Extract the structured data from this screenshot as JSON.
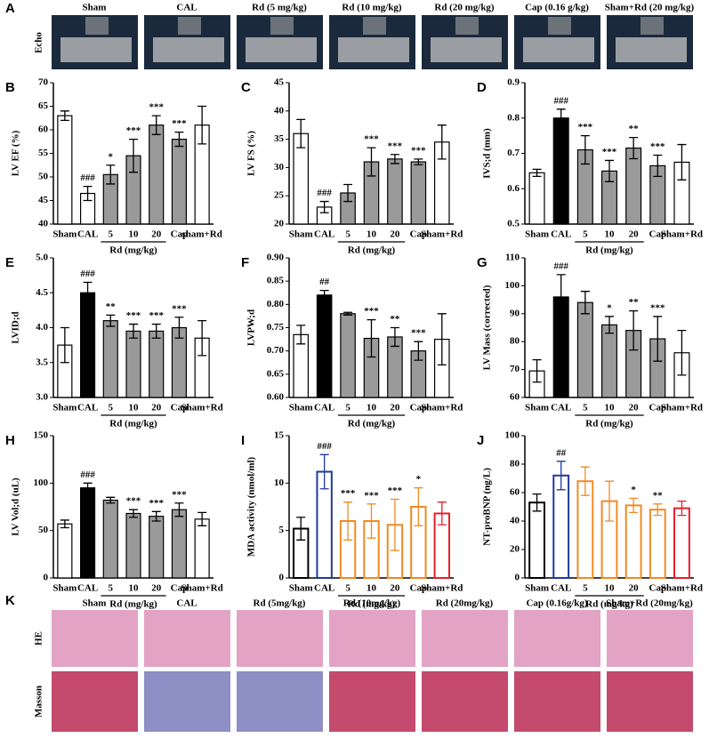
{
  "panel_a": {
    "letter": "A",
    "row_label": "Echo",
    "columns": [
      "Sham",
      "CAL",
      "Rd (5 mg/kg)",
      "Rd (10 mg/kg)",
      "Rd (20 mg/kg)",
      "Cap (0.16 g/kg)",
      "Sham+Rd (20 mg/kg)"
    ]
  },
  "chart_data": [
    {
      "type": "bar",
      "letter": "B",
      "ylabel": "LV EF (%)",
      "categories": [
        "Sham",
        "CAL",
        "5",
        "10",
        "20",
        "Cap",
        "sham+Rd"
      ],
      "group_label": "Rd (mg/kg)",
      "values": [
        63,
        46.5,
        50.5,
        54.5,
        61,
        58,
        61
      ],
      "errors": [
        1,
        1.5,
        2,
        3.5,
        2,
        1.5,
        4
      ],
      "significance": [
        null,
        "###",
        "*",
        "***",
        "***",
        "***",
        null
      ],
      "colors": [
        "#ffffff",
        "#ffffff",
        "#9a9a9a",
        "#9a9a9a",
        "#9a9a9a",
        "#9a9a9a",
        "#ffffff"
      ],
      "ylim": [
        40,
        70
      ],
      "yticks": [
        40,
        45,
        50,
        55,
        60,
        65,
        70
      ]
    },
    {
      "type": "bar",
      "letter": "C",
      "ylabel": "LV FS (%)",
      "categories": [
        "Sham",
        "CAL",
        "5",
        "10",
        "20",
        "Cap",
        "Sham+Rd"
      ],
      "group_label": "Rd (mg/kg)",
      "values": [
        36,
        23,
        25.5,
        31,
        31.5,
        31,
        34.5
      ],
      "errors": [
        2.5,
        1,
        1.5,
        2.5,
        0.8,
        0.5,
        3
      ],
      "significance": [
        null,
        "###",
        null,
        "***",
        "***",
        "***",
        null
      ],
      "colors": [
        "#ffffff",
        "#ffffff",
        "#9a9a9a",
        "#9a9a9a",
        "#9a9a9a",
        "#9a9a9a",
        "#ffffff"
      ],
      "ylim": [
        20,
        45
      ],
      "yticks": [
        20,
        25,
        30,
        35,
        40,
        45
      ]
    },
    {
      "type": "bar",
      "letter": "D",
      "ylabel": "IVS;d (mm)",
      "categories": [
        "Sham",
        "CAL",
        "5",
        "10",
        "20",
        "Cap",
        "Sham+Rd"
      ],
      "group_label": "Rd (mg/kg)",
      "values": [
        0.645,
        0.8,
        0.71,
        0.65,
        0.715,
        0.665,
        0.675
      ],
      "errors": [
        0.01,
        0.025,
        0.04,
        0.03,
        0.03,
        0.03,
        0.05
      ],
      "significance": [
        null,
        "###",
        "***",
        "***",
        "**",
        "***",
        null
      ],
      "colors": [
        "#ffffff",
        "#000000",
        "#9a9a9a",
        "#9a9a9a",
        "#9a9a9a",
        "#9a9a9a",
        "#ffffff"
      ],
      "ylim": [
        0.5,
        0.9
      ],
      "yticks": [
        0.5,
        0.6,
        0.7,
        0.8,
        0.9
      ]
    },
    {
      "type": "bar",
      "letter": "E",
      "ylabel": "LVID;d",
      "categories": [
        "Sham",
        "CAL",
        "5",
        "10",
        "20",
        "Cap",
        "Sham+Rd"
      ],
      "group_label": "Rd (mg/kg)",
      "values": [
        3.75,
        4.5,
        4.1,
        3.95,
        3.95,
        4.0,
        3.85
      ],
      "errors": [
        0.25,
        0.15,
        0.08,
        0.1,
        0.1,
        0.15,
        0.25
      ],
      "significance": [
        null,
        "###",
        "**",
        "***",
        "***",
        "***",
        null
      ],
      "colors": [
        "#ffffff",
        "#000000",
        "#9a9a9a",
        "#9a9a9a",
        "#9a9a9a",
        "#9a9a9a",
        "#ffffff"
      ],
      "ylim": [
        3,
        5
      ],
      "yticks": [
        {
          "value": 3,
          "label": "3.0"
        },
        3.5,
        {
          "value": 4,
          "label": "4.0"
        },
        4.5,
        {
          "value": 5,
          "label": "5.0"
        }
      ]
    },
    {
      "type": "bar",
      "letter": "F",
      "ylabel": "LVPW;d",
      "categories": [
        "Sham",
        "CAL",
        "5",
        "10",
        "20",
        "Cap",
        "Sham+Rd"
      ],
      "group_label": "Rd (mg/kg)",
      "values": [
        0.735,
        0.82,
        0.78,
        0.727,
        0.73,
        0.7,
        0.725
      ],
      "errors": [
        0.02,
        0.01,
        0.003,
        0.04,
        0.02,
        0.02,
        0.055
      ],
      "significance": [
        null,
        "##",
        null,
        "***",
        "**",
        "***",
        null
      ],
      "colors": [
        "#ffffff",
        "#000000",
        "#9a9a9a",
        "#9a9a9a",
        "#9a9a9a",
        "#9a9a9a",
        "#ffffff"
      ],
      "ylim": [
        0.6,
        0.9
      ],
      "yticks": [
        {
          "value": 0.6,
          "label": "0.60"
        },
        0.65,
        {
          "value": 0.7,
          "label": "0.70"
        },
        0.75,
        {
          "value": 0.8,
          "label": "0.80"
        },
        0.85,
        {
          "value": 0.9,
          "label": "0.90"
        }
      ]
    },
    {
      "type": "bar",
      "letter": "G",
      "ylabel": "LV Mass (corrected)",
      "categories": [
        "Sham",
        "CAL",
        "5",
        "10",
        "20",
        "Cap",
        "Sham+Rd"
      ],
      "group_label": "Rd (mg/kg)",
      "values": [
        69.5,
        96,
        94,
        86,
        84,
        81,
        76
      ],
      "errors": [
        4,
        8,
        4,
        3,
        7,
        8,
        8
      ],
      "significance": [
        null,
        "###",
        null,
        "*",
        "**",
        "***",
        null
      ],
      "colors": [
        "#ffffff",
        "#000000",
        "#9a9a9a",
        "#9a9a9a",
        "#9a9a9a",
        "#9a9a9a",
        "#ffffff"
      ],
      "ylim": [
        60,
        110
      ],
      "yticks": [
        60,
        70,
        80,
        90,
        100,
        110
      ]
    },
    {
      "type": "bar",
      "letter": "H",
      "ylabel": "LV Vol;d (uL)",
      "categories": [
        "Sham",
        "CAL",
        "5",
        "10",
        "20",
        "Cap",
        "Sham+Rd"
      ],
      "group_label": "Rd (mg/kg)",
      "values": [
        57,
        95,
        82,
        68,
        65,
        72,
        62
      ],
      "errors": [
        4,
        5,
        3,
        4,
        5,
        7,
        7
      ],
      "significance": [
        null,
        "###",
        null,
        "***",
        "***",
        "***",
        null
      ],
      "colors": [
        "#ffffff",
        "#000000",
        "#9a9a9a",
        "#9a9a9a",
        "#9a9a9a",
        "#9a9a9a",
        "#ffffff"
      ],
      "ylim": [
        0,
        150
      ],
      "yticks": [
        0,
        50,
        100,
        150
      ]
    },
    {
      "type": "bar",
      "letter": "I",
      "ylabel": "MDA activity (nmol/ml)",
      "categories": [
        "Sham",
        "CAL",
        "5",
        "10",
        "20",
        "Cap",
        "Sham+Rd"
      ],
      "group_label": "Rd (mg/kg)",
      "bar_style": "outline",
      "values": [
        5.2,
        11.2,
        6.0,
        6.0,
        5.6,
        7.5,
        6.8
      ],
      "errors": [
        1.2,
        1.8,
        2,
        1.8,
        2.7,
        2,
        1.2
      ],
      "significance": [
        null,
        "###",
        "***",
        "***",
        "***",
        "*",
        null
      ],
      "colors": [
        "#000000",
        "#1f3a9c",
        "#f08a24",
        "#f08a24",
        "#f08a24",
        "#f08a24",
        "#e4202a"
      ],
      "ylim": [
        0,
        15
      ],
      "yticks": [
        0,
        5,
        10,
        15
      ]
    },
    {
      "type": "bar",
      "letter": "J",
      "ylabel": "NT-proBNP (ng/L)",
      "categories": [
        "Sham",
        "CAL",
        "5",
        "10",
        "20",
        "Cap",
        "Sham+Rd"
      ],
      "group_label": "Rd (mg/kg)",
      "bar_style": "outline",
      "values": [
        53,
        72,
        68,
        54,
        51,
        48,
        49
      ],
      "errors": [
        6,
        10,
        10,
        14,
        5,
        4,
        5
      ],
      "significance": [
        null,
        "##",
        null,
        null,
        "*",
        "**",
        null
      ],
      "colors": [
        "#000000",
        "#1f3a9c",
        "#f08a24",
        "#f08a24",
        "#f08a24",
        "#f08a24",
        "#e4202a"
      ],
      "ylim": [
        0,
        100
      ],
      "yticks": [
        0,
        20,
        40,
        60,
        80,
        100
      ]
    }
  ],
  "panel_k": {
    "letter": "K",
    "row_labels": [
      "HE",
      "Masson"
    ],
    "columns": [
      "Sham",
      "CAL",
      "Rd (5mg/kg)",
      "Rd (10mg/kg)",
      "Rd (20mg/kg)",
      "Cap (0.16g/kg)",
      "Sham+Rd (20mg/kg)"
    ]
  }
}
